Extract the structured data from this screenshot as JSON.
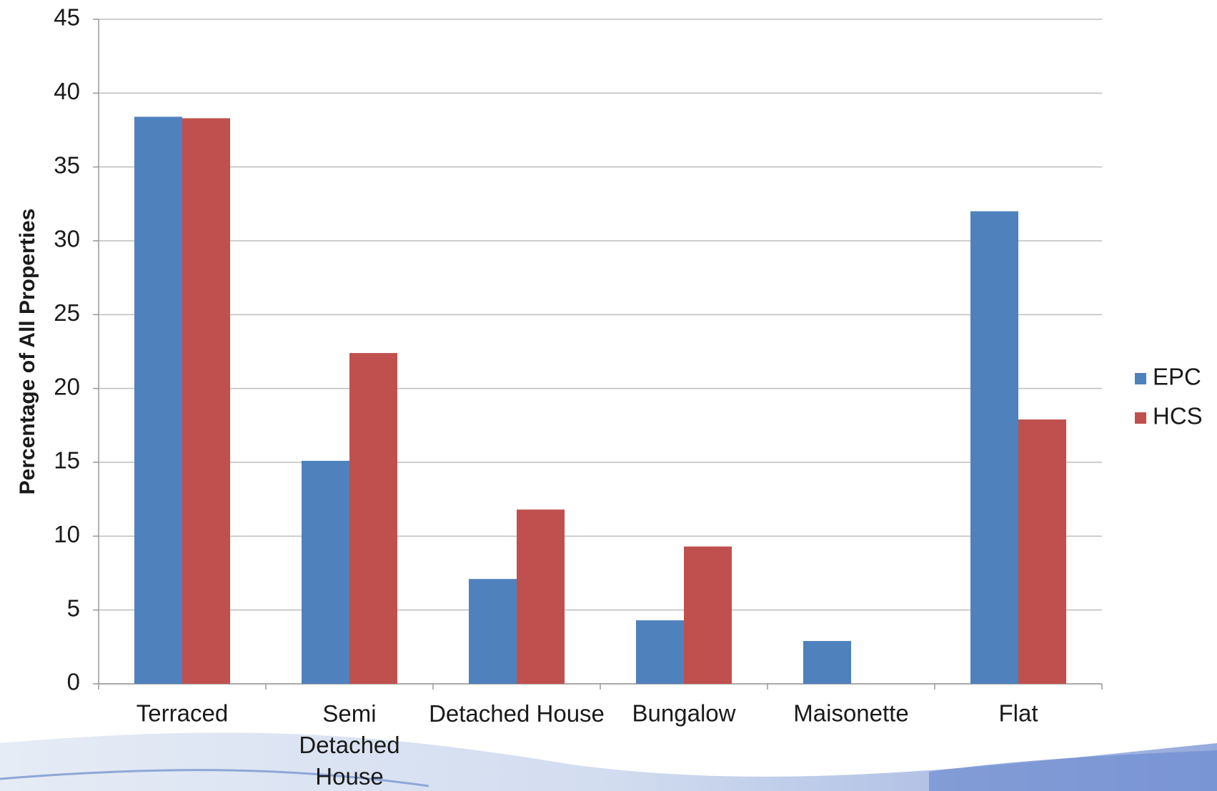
{
  "chart_data": {
    "type": "bar",
    "y_label": "Percentage of All Properties",
    "categories": [
      "Terraced",
      "Semi Detached House",
      "Detached House",
      "Bungalow",
      "Maisonette",
      "Flat"
    ],
    "series": [
      {
        "name": "EPC",
        "color": "#4f81bd",
        "values": [
          38.4,
          15.1,
          7.1,
          4.3,
          2.9,
          32.0
        ]
      },
      {
        "name": "HCS",
        "color": "#c0504d",
        "values": [
          38.3,
          22.4,
          11.8,
          9.3,
          null,
          17.9
        ]
      }
    ],
    "ylim": [
      0,
      45
    ],
    "yticks": [
      0,
      5,
      10,
      15,
      20,
      25,
      30,
      35,
      40,
      45
    ],
    "grid": true,
    "legend": "right"
  }
}
